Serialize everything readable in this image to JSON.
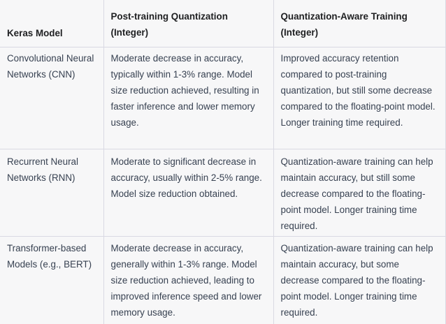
{
  "table": {
    "headers": [
      "Keras Model",
      "Post-training Quantization (Integer)",
      "Quantization-Aware Training (Integer)"
    ],
    "rows": [
      {
        "model": "Convolutional Neural Networks (CNN)",
        "post_training": "Moderate decrease in accuracy, typically within 1-3% range. Model size reduction achieved, resulting in faster inference and lower memory usage.",
        "qat": "Improved accuracy retention compared to post-training quantization, but still some decrease compared to the floating-point model. Longer training time required."
      },
      {
        "model": "Recurrent Neural Networks (RNN)",
        "post_training": "Moderate to significant decrease in accuracy, usually within 2-5% range. Model size reduction obtained.",
        "qat": "Quantization-aware training can help maintain accuracy, but still some decrease compared to the floating-point model. Longer training time required."
      },
      {
        "model": "Transformer-based Models (e.g., BERT)",
        "post_training": "Moderate decrease in accuracy, generally within 1-3% range. Model size reduction achieved, leading to improved inference speed and lower memory usage.",
        "qat": "Quantization-aware training can help maintain accuracy, but some decrease compared to the floating-point model. Longer training time required."
      }
    ]
  }
}
